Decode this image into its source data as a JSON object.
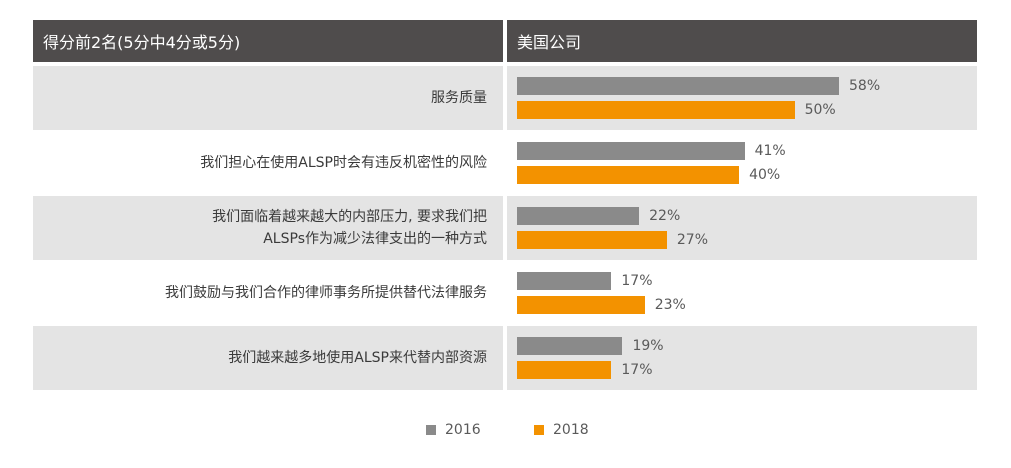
{
  "header": {
    "left_title": "得分前2名(5分中4分或5分)",
    "right_title": "美国公司"
  },
  "colors": {
    "series_2016": "#8a8a8a",
    "series_2018": "#f39200"
  },
  "chart_data": {
    "type": "bar",
    "orientation": "horizontal",
    "title": "",
    "categories": [
      [
        "服务质量"
      ],
      [
        "我们担心在使用ALSP时会有违反机密性的风险"
      ],
      [
        "我们面临着越来越大的内部压力, 要求我们把",
        "ALSPs作为减少法律支出的一种方式"
      ],
      [
        "我们鼓励与我们合作的律师事务所提供替代法律服务"
      ],
      [
        "我们越来越多地使用ALSP来代替内部资源"
      ]
    ],
    "series": [
      {
        "name": "2016",
        "values": [
          58,
          41,
          22,
          17,
          19
        ],
        "labels": [
          "58%",
          "41%",
          "22%",
          "17%",
          "19%"
        ]
      },
      {
        "name": "2018",
        "values": [
          50,
          40,
          27,
          23,
          17
        ],
        "labels": [
          "50%",
          "40%",
          "27%",
          "23%",
          "17%"
        ]
      }
    ],
    "xlim": [
      0,
      100
    ],
    "grid": false,
    "legend": "bottom-center"
  }
}
